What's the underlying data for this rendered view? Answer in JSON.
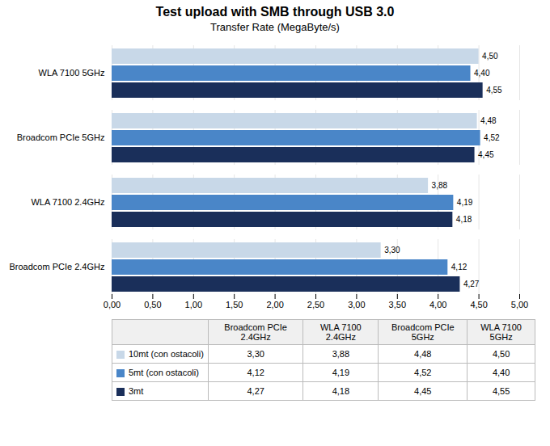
{
  "chart_data": {
    "type": "bar",
    "orientation": "horizontal",
    "title": "Test upload with SMB through USB 3.0",
    "subtitle": "Transfer Rate  (MegaByte/s)",
    "categories": [
      "Broadcom PCIe 2.4GHz",
      "WLA 7100 2.4GHz",
      "Broadcom PCIe 5GHz",
      "WLA 7100 5GHz"
    ],
    "series": [
      {
        "name": "10mt (con ostacoli)",
        "color": "#c8d8e8",
        "values": [
          3.3,
          3.88,
          4.48,
          4.5
        ],
        "value_labels": [
          "3,30",
          "3,88",
          "4,48",
          "4,50"
        ]
      },
      {
        "name": "5mt  (con ostacoli)",
        "color": "#4a86c8",
        "values": [
          4.12,
          4.19,
          4.52,
          4.4
        ],
        "value_labels": [
          "4,12",
          "4,19",
          "4,52",
          "4,40"
        ]
      },
      {
        "name": "3mt",
        "color": "#1a2f5a",
        "values": [
          4.27,
          4.18,
          4.45,
          4.55
        ],
        "value_labels": [
          "4,27",
          "4,18",
          "4,45",
          "4,55"
        ]
      }
    ],
    "xlim": [
      0,
      5.0
    ],
    "xticks": [
      {
        "value": 0.0,
        "label": "0,00"
      },
      {
        "value": 0.5,
        "label": "0,50"
      },
      {
        "value": 1.0,
        "label": "1,00"
      },
      {
        "value": 1.5,
        "label": "1,50"
      },
      {
        "value": 2.0,
        "label": "2,00"
      },
      {
        "value": 2.5,
        "label": "2,50"
      },
      {
        "value": 3.0,
        "label": "3,00"
      },
      {
        "value": 3.5,
        "label": "3,50"
      },
      {
        "value": 4.0,
        "label": "4,00"
      },
      {
        "value": 4.5,
        "label": "4,50"
      },
      {
        "value": 5.0,
        "label": "5,00"
      }
    ],
    "grid": true,
    "data_labels": true
  }
}
